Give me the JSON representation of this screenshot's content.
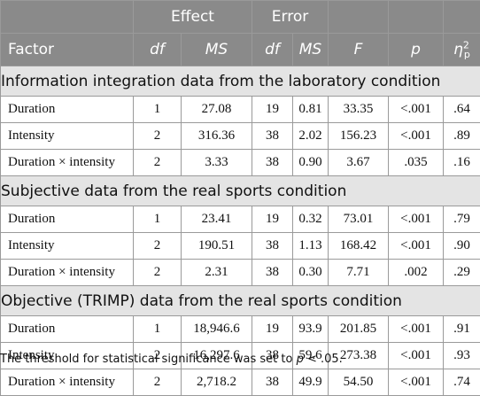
{
  "header": {
    "group_effect": "Effect",
    "group_error": "Error",
    "factor": "Factor",
    "df_effect": "df",
    "ms_effect": "MS",
    "df_error": "df",
    "ms_error": "MS",
    "f": "F",
    "p": "p",
    "eta_symbol": "η",
    "eta_sup": "2",
    "eta_sub": "p"
  },
  "sections": [
    {
      "title": "Information integration data from the laboratory condition",
      "rows": [
        {
          "factor": "Duration",
          "df_effect": "1",
          "ms_effect": "27.08",
          "df_error": "19",
          "ms_error": "0.81",
          "f": "33.35",
          "p": "<.001",
          "eta": ".64"
        },
        {
          "factor": "Intensity",
          "df_effect": "2",
          "ms_effect": "316.36",
          "df_error": "38",
          "ms_error": "2.02",
          "f": "156.23",
          "p": "<.001",
          "eta": ".89"
        },
        {
          "factor": "Duration × intensity",
          "df_effect": "2",
          "ms_effect": "3.33",
          "df_error": "38",
          "ms_error": "0.90",
          "f": "3.67",
          "p": ".035",
          "eta": ".16"
        }
      ]
    },
    {
      "title": "Subjective data from the real sports condition",
      "rows": [
        {
          "factor": "Duration",
          "df_effect": "1",
          "ms_effect": "23.41",
          "df_error": "19",
          "ms_error": "0.32",
          "f": "73.01",
          "p": "<.001",
          "eta": ".79"
        },
        {
          "factor": "Intensity",
          "df_effect": "2",
          "ms_effect": "190.51",
          "df_error": "38",
          "ms_error": "1.13",
          "f": "168.42",
          "p": "<.001",
          "eta": ".90"
        },
        {
          "factor": "Duration × intensity",
          "df_effect": "2",
          "ms_effect": "2.31",
          "df_error": "38",
          "ms_error": "0.30",
          "f": "7.71",
          "p": ".002",
          "eta": ".29"
        }
      ]
    },
    {
      "title": "Objective (TRIMP) data from the real sports condition",
      "rows": [
        {
          "factor": "Duration",
          "df_effect": "1",
          "ms_effect": "18,946.6",
          "df_error": "19",
          "ms_error": "93.9",
          "f": "201.85",
          "p": "<.001",
          "eta": ".91"
        },
        {
          "factor": "Intensity",
          "df_effect": "2",
          "ms_effect": "16,297.6",
          "df_error": "38",
          "ms_error": "59.6",
          "f": "273.38",
          "p": "<.001",
          "eta": ".93"
        },
        {
          "factor": "Duration × intensity",
          "df_effect": "2",
          "ms_effect": "2,718.2",
          "df_error": "38",
          "ms_error": "49.9",
          "f": "54.50",
          "p": "<.001",
          "eta": ".74"
        }
      ]
    }
  ],
  "footnote": {
    "text": "The threshold for statistical significance was set to ",
    "p_symbol": "p",
    "threshold": " < .05."
  }
}
